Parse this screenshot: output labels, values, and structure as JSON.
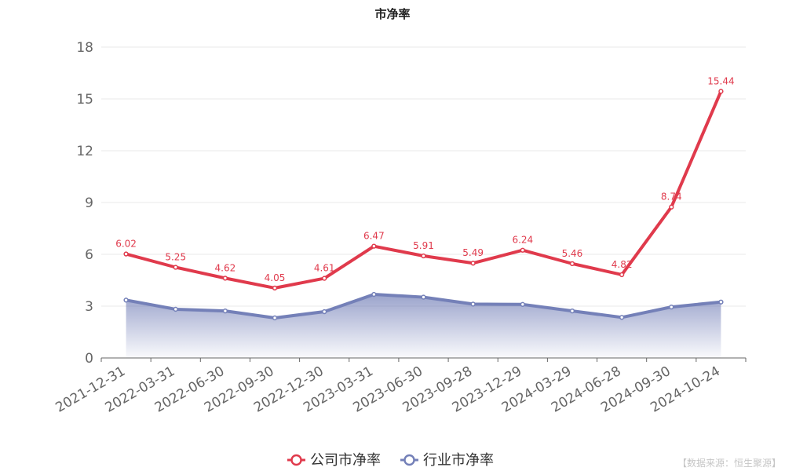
{
  "chart_data": {
    "type": "line",
    "title": "市净率",
    "categories": [
      "2021-12-31",
      "2022-03-31",
      "2022-06-30",
      "2022-09-30",
      "2022-12-30",
      "2023-03-31",
      "2023-06-30",
      "2023-09-28",
      "2023-12-29",
      "2024-03-29",
      "2024-06-28",
      "2024-09-30",
      "2024-10-24"
    ],
    "ylim": [
      0,
      18
    ],
    "yticks": [
      0,
      3,
      6,
      9,
      12,
      15,
      18
    ],
    "grid": true,
    "legend_position": "bottom-center",
    "series": [
      {
        "name": "公司市净率",
        "values": [
          6.02,
          5.25,
          4.62,
          4.05,
          4.61,
          6.47,
          5.91,
          5.49,
          6.24,
          5.46,
          4.82,
          8.74,
          15.44
        ],
        "data_labels": [
          "6.02",
          "5.25",
          "4.62",
          "4.05",
          "4.61",
          "6.47",
          "5.91",
          "5.49",
          "6.24",
          "5.46",
          "4.82",
          "8.74",
          "15.44"
        ],
        "color": "#e03a4c"
      },
      {
        "name": "行业市净率",
        "values": [
          3.35,
          2.82,
          2.72,
          2.32,
          2.68,
          3.68,
          3.52,
          3.12,
          3.1,
          2.72,
          2.35,
          2.95,
          3.24
        ],
        "color": "#7480b8"
      }
    ],
    "watermark": "【数据来源：恒生聚源】"
  }
}
